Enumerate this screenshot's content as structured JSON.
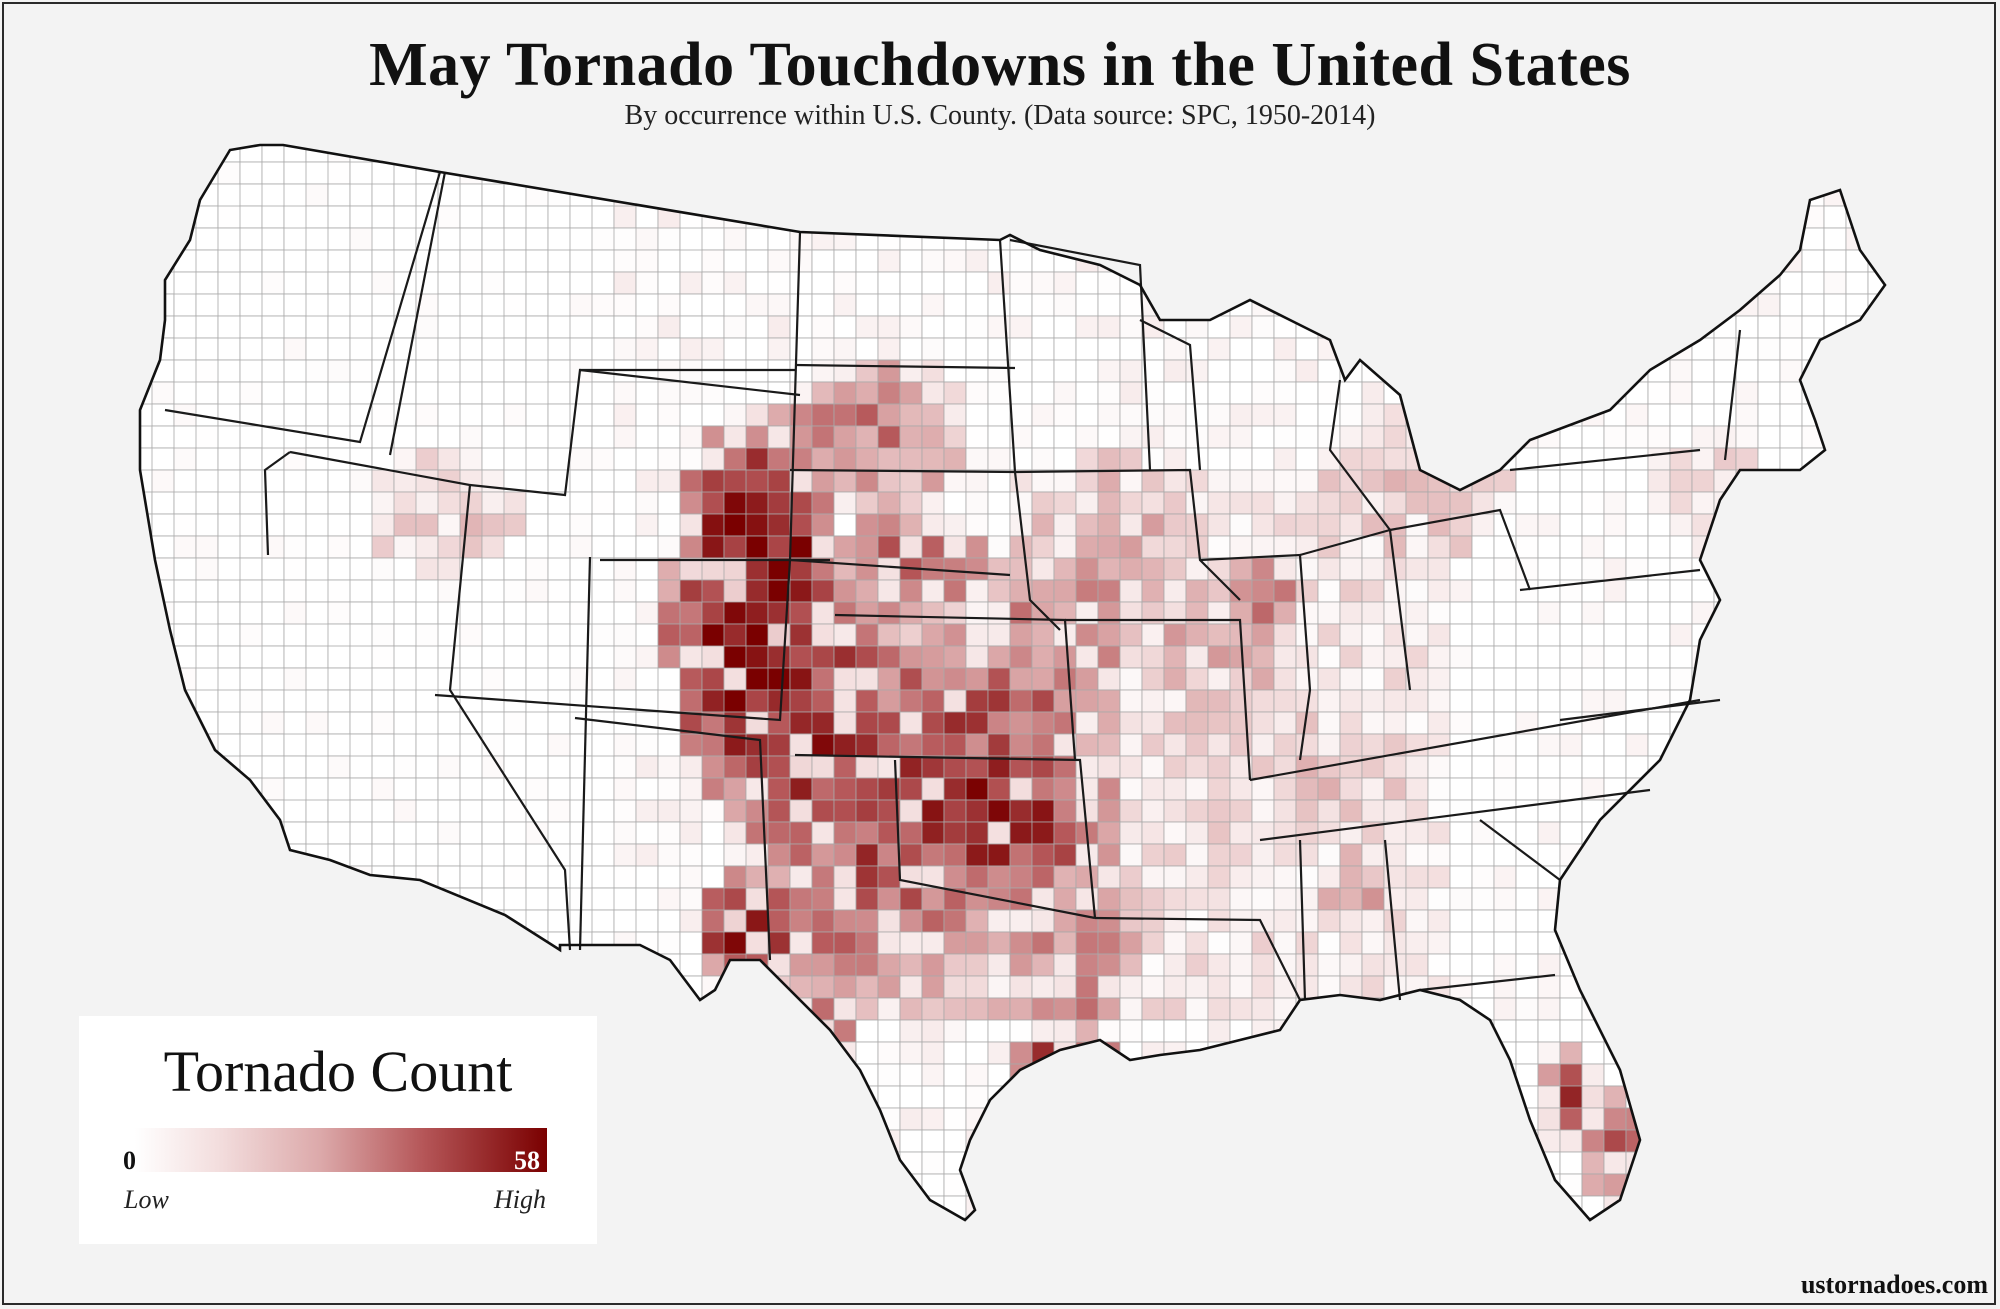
{
  "title": "May Tornado Touchdowns in the United States",
  "subtitle": "By occurrence within U.S. County. (Data source: SPC, 1950-2014)",
  "legend": {
    "title": "Tornado Count",
    "min_value": "0",
    "max_value": "58",
    "low_label": "Low",
    "high_label": "High",
    "color_low": "#ffffff",
    "color_high": "#7a0000"
  },
  "credit": "ustornadoes.com",
  "colors": {
    "background": "#f3f3f3",
    "border": "#1a1a1a",
    "county_line": "#9e9e9e"
  }
}
